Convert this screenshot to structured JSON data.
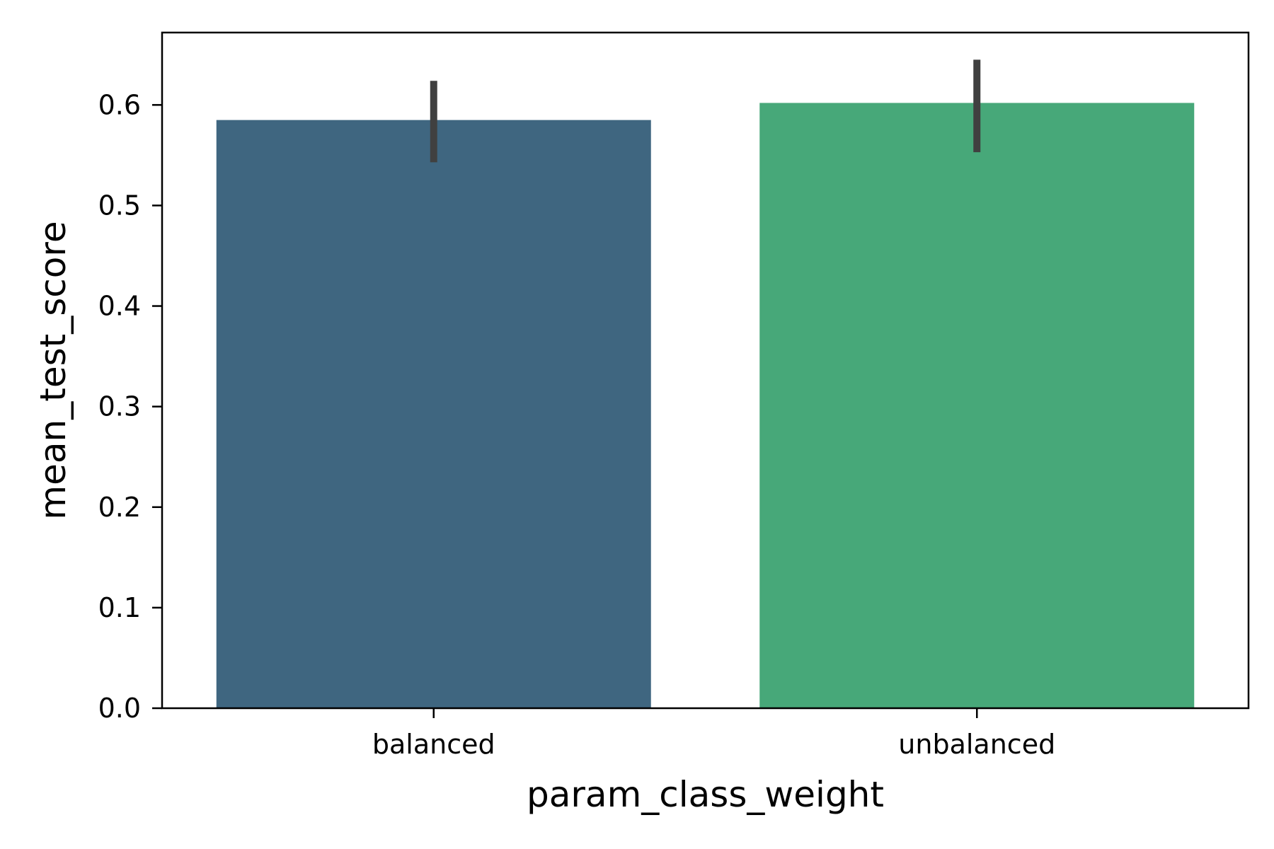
{
  "chart_data": {
    "type": "bar",
    "title": "",
    "xlabel": "param_class_weight",
    "ylabel": "mean_test_score",
    "categories": [
      "balanced",
      "unbalanced"
    ],
    "values": [
      0.585,
      0.602
    ],
    "error_bars": [
      {
        "low": 0.543,
        "high": 0.624
      },
      {
        "low": 0.553,
        "high": 0.645
      }
    ],
    "colors": [
      "#3f6680",
      "#47a879"
    ],
    "error_bar_color": "#404040",
    "ylim": [
      0,
      0.672
    ],
    "yticks": [
      0.0,
      0.1,
      0.2,
      0.3,
      0.4,
      0.5,
      0.6
    ],
    "ytick_labels": [
      "0.0",
      "0.1",
      "0.2",
      "0.3",
      "0.4",
      "0.5",
      "0.6"
    ],
    "grid": false,
    "legend": "none"
  }
}
